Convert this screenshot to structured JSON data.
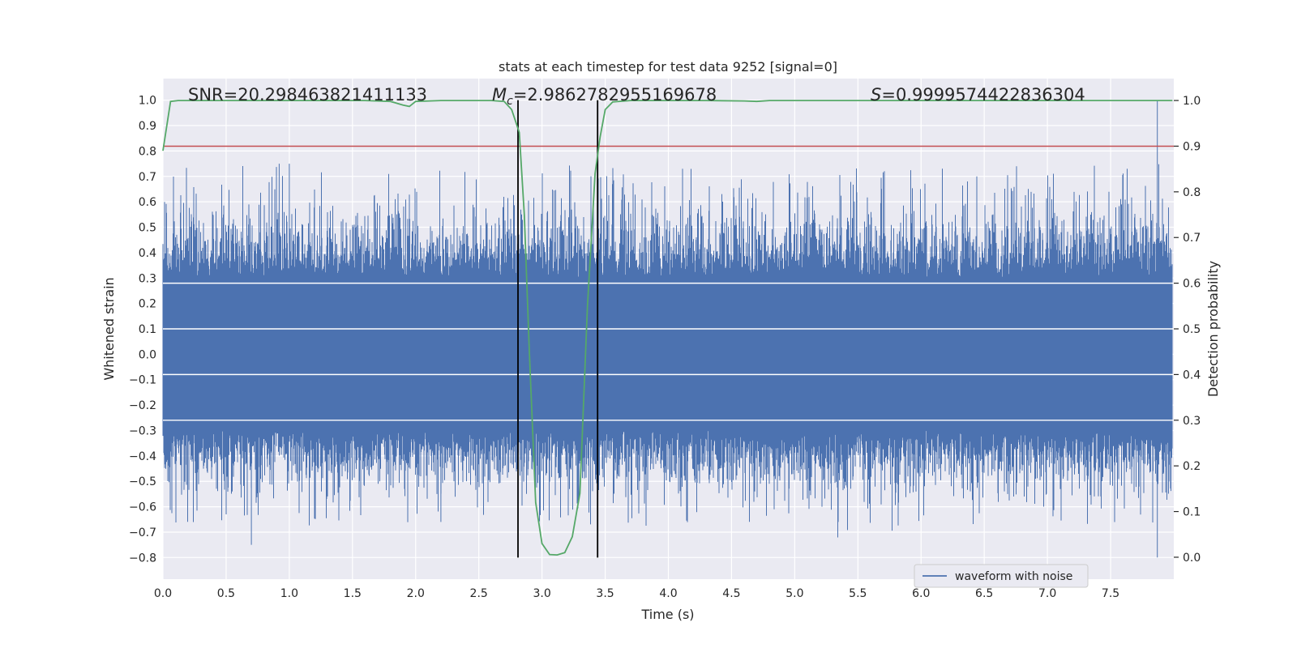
{
  "chart_data": {
    "type": "line",
    "title": "stats at each timestep for test data 9252 [signal=0]",
    "xlabel": "Time (s)",
    "ylabel_left": "Whitened strain",
    "ylabel_right": "Detection probability",
    "xlim": [
      0.0,
      8.0
    ],
    "ylim_left": [
      -0.885,
      1.085
    ],
    "ylim_right": [
      -0.048,
      1.048
    ],
    "x_ticks": [
      "0.0",
      "0.5",
      "1.0",
      "1.5",
      "2.0",
      "2.5",
      "3.0",
      "3.5",
      "4.0",
      "4.5",
      "5.0",
      "5.5",
      "6.0",
      "6.5",
      "7.0",
      "7.5"
    ],
    "x_tick_values": [
      0,
      0.5,
      1,
      1.5,
      2,
      2.5,
      3,
      3.5,
      4,
      4.5,
      5,
      5.5,
      6,
      6.5,
      7,
      7.5
    ],
    "y_left_ticks": [
      "1.0",
      "0.9",
      "0.8",
      "0.7",
      "0.6",
      "0.5",
      "0.4",
      "0.3",
      "0.2",
      "0.1",
      "0.0",
      "−0.1",
      "−0.2",
      "−0.3",
      "−0.4",
      "−0.5",
      "−0.6",
      "−0.7",
      "−0.8"
    ],
    "y_left_tick_values": [
      1.0,
      0.9,
      0.8,
      0.7,
      0.6,
      0.5,
      0.4,
      0.3,
      0.2,
      0.1,
      0.0,
      -0.1,
      -0.2,
      -0.3,
      -0.4,
      -0.5,
      -0.6,
      -0.7,
      -0.8
    ],
    "y_right_ticks": [
      "1.0",
      "0.9",
      "0.8",
      "0.7",
      "0.6",
      "0.5",
      "0.4",
      "0.3",
      "0.2",
      "0.1",
      "0.0"
    ],
    "y_right_tick_values": [
      1.0,
      0.9,
      0.8,
      0.7,
      0.6,
      0.5,
      0.4,
      0.3,
      0.2,
      0.1,
      0.0
    ],
    "annotations": {
      "snr": "SNR=20.298463821411133",
      "mc_symbol": "M",
      "mc_sub": "c",
      "mc_value": "=2.9862782955169678",
      "s_symbol": "S",
      "s_value": "=0.9999574422836304"
    },
    "threshold_line": {
      "y_right": 0.9,
      "color": "#c44e52"
    },
    "vertical_lines": {
      "x": [
        2.81,
        3.44
      ],
      "ymin": -0.8,
      "ymax": 1.0,
      "color": "#000000"
    },
    "series": [
      {
        "name": "waveform with noise",
        "axis": "left",
        "color": "#4c72b0",
        "style": "dense noise trace (~8000 samples)",
        "core_band": [
          -0.28,
          0.28
        ],
        "typical_peak_range": [
          -0.5,
          0.75
        ],
        "notable_extremes": [
          {
            "x": 0.7,
            "y": -0.75
          },
          {
            "x": 0.92,
            "y": 0.75
          },
          {
            "x": 1.0,
            "y": 0.75
          },
          {
            "x": 2.2,
            "y": -0.66
          },
          {
            "x": 7.87,
            "y": 1.0
          },
          {
            "x": 7.87,
            "y": -0.8
          }
        ]
      },
      {
        "name": "Detection probability",
        "axis": "right",
        "color": "#55a868",
        "x": [
          0.0,
          0.06,
          0.12,
          0.2,
          0.4,
          0.6,
          0.8,
          1.0,
          1.2,
          1.4,
          1.6,
          1.8,
          1.9,
          1.95,
          2.0,
          2.2,
          2.4,
          2.6,
          2.7,
          2.76,
          2.82,
          2.86,
          2.9,
          2.95,
          3.0,
          3.06,
          3.12,
          3.18,
          3.24,
          3.3,
          3.36,
          3.42,
          3.46,
          3.5,
          3.56,
          3.7,
          4.0,
          4.3,
          4.6,
          4.7,
          4.8,
          5.0,
          5.5,
          6.0,
          6.5,
          7.0,
          7.5,
          7.99
        ],
        "y": [
          0.89,
          0.998,
          1.0,
          1.0,
          1.0,
          1.0,
          1.0,
          1.0,
          1.0,
          1.0,
          1.0,
          0.998,
          0.99,
          0.987,
          0.998,
          1.0,
          1.0,
          1.0,
          0.998,
          0.98,
          0.93,
          0.75,
          0.45,
          0.12,
          0.03,
          0.006,
          0.005,
          0.01,
          0.045,
          0.14,
          0.55,
          0.84,
          0.92,
          0.98,
          0.997,
          1.0,
          1.0,
          1.0,
          0.999,
          0.998,
          1.0,
          1.0,
          1.0,
          1.0,
          1.0,
          1.0,
          1.0,
          1.0
        ]
      }
    ],
    "legend": {
      "location": "lower center-right",
      "label": "waveform with noise"
    },
    "grid": true
  }
}
